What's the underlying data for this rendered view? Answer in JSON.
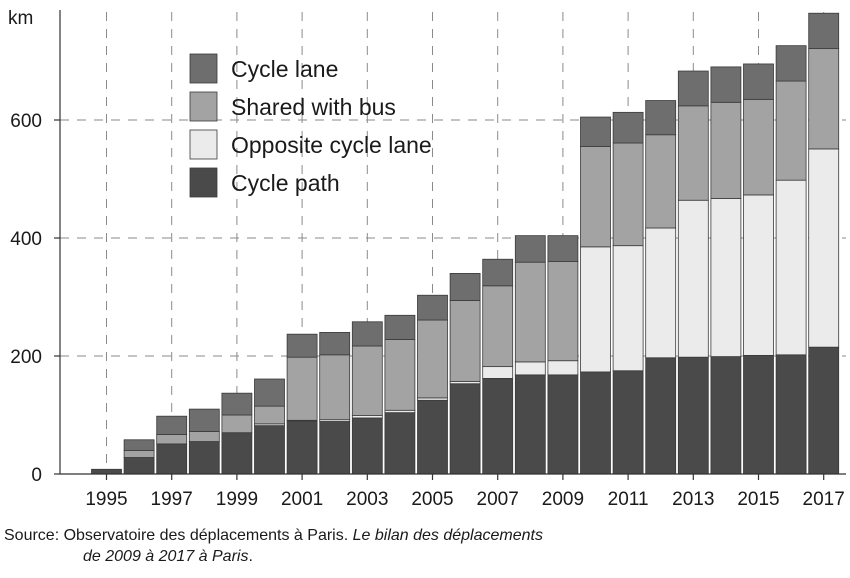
{
  "chart_data": {
    "type": "bar",
    "stacked": true,
    "x": [
      1995,
      1996,
      1997,
      1998,
      1999,
      2000,
      2001,
      2002,
      2003,
      2004,
      2005,
      2006,
      2007,
      2008,
      2009,
      2010,
      2011,
      2012,
      2013,
      2014,
      2015,
      2016,
      2017
    ],
    "x_tick_labels": [
      "1995",
      "1997",
      "1999",
      "2001",
      "2003",
      "2005",
      "2007",
      "2009",
      "2011",
      "2013",
      "2015",
      "2017"
    ],
    "y_tick_labels": [
      "0",
      "200",
      "400",
      "600"
    ],
    "y_unit": "km",
    "ylim": [
      0,
      780
    ],
    "grid": "dashed, y at 200/400/600 and x at odd years",
    "legend_position": "top-left",
    "series": [
      {
        "name": "Cycle path",
        "color": "#4a4a4a",
        "values": [
          8,
          28,
          51,
          55,
          70,
          82,
          90,
          89,
          95,
          104,
          125,
          153,
          162,
          168,
          168,
          173,
          175,
          197,
          198,
          199,
          201,
          202,
          215
        ]
      },
      {
        "name": "Opposite cycle lane",
        "color": "#ebebeb",
        "values": [
          0,
          0,
          0,
          0,
          0,
          3,
          1,
          3,
          4,
          4,
          4,
          4,
          20,
          22,
          24,
          212,
          212,
          220,
          266,
          268,
          272,
          296,
          336
        ]
      },
      {
        "name": "Shared with bus",
        "color": "#a3a3a3",
        "values": [
          0,
          12,
          16,
          17,
          30,
          30,
          107,
          110,
          118,
          120,
          132,
          137,
          137,
          169,
          168,
          170,
          174,
          158,
          160,
          163,
          162,
          168,
          170
        ]
      },
      {
        "name": "Cycle lane",
        "color": "#6e6e6e",
        "values": [
          0,
          18,
          31,
          38,
          37,
          46,
          39,
          38,
          41,
          41,
          42,
          46,
          45,
          45,
          44,
          50,
          52,
          58,
          59,
          60,
          60,
          60,
          60
        ]
      }
    ],
    "legend_order": [
      "Cycle lane",
      "Shared with bus",
      "Opposite cycle lane",
      "Cycle path"
    ]
  },
  "source": {
    "prefix": "Source: Observatoire des déplacements à Paris. ",
    "title_part1": "Le bilan des déplacements",
    "title_part2": "de 2009 à 2017 à Paris",
    "suffix": "."
  }
}
